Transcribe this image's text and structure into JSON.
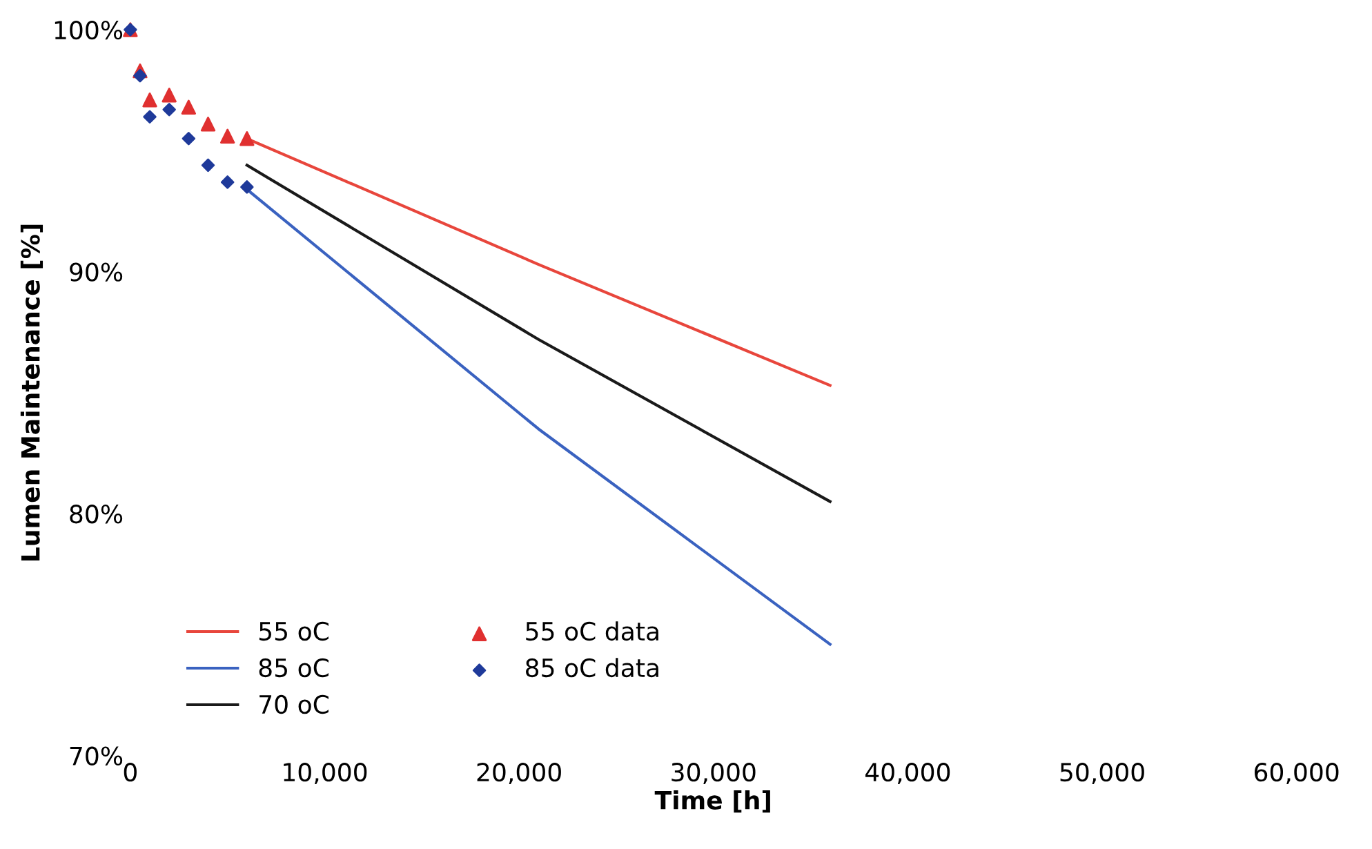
{
  "chart_data": {
    "type": "line",
    "xlabel": "Time [h]",
    "ylabel": "Lumen Maintenance [%]",
    "xlim": [
      0,
      60000
    ],
    "ylim": [
      70,
      100
    ],
    "xticks": [
      {
        "value": 0,
        "label": "0"
      },
      {
        "value": 10000,
        "label": "10,000"
      },
      {
        "value": 20000,
        "label": "20,000"
      },
      {
        "value": 30000,
        "label": "30,000"
      },
      {
        "value": 40000,
        "label": "40,000"
      },
      {
        "value": 50000,
        "label": "50,000"
      },
      {
        "value": 60000,
        "label": "60,000"
      }
    ],
    "yticks": [
      {
        "value": 70,
        "label": "70%"
      },
      {
        "value": 80,
        "label": "80%"
      },
      {
        "value": 90,
        "label": "90%"
      },
      {
        "value": 100,
        "label": "100%"
      }
    ],
    "grid": false,
    "legend": "bottom left",
    "series": [
      {
        "name": "55 oC",
        "color": "#e8463c",
        "marker": "none",
        "x": [
          6000,
          21000,
          36000
        ],
        "values": [
          95.5,
          90.3,
          85.3
        ]
      },
      {
        "name": "85 oC",
        "color": "#3a62c0",
        "marker": "none",
        "x": [
          6000,
          21000,
          36000
        ],
        "values": [
          93.4,
          83.5,
          74.6
        ]
      },
      {
        "name": "70 oC",
        "color": "#1a1a1a",
        "marker": "none",
        "x": [
          6000,
          21000,
          36000
        ],
        "values": [
          94.4,
          87.2,
          80.5
        ]
      },
      {
        "name": "55 oC data",
        "type": "scatter",
        "color": "#e03030",
        "marker": "triangle",
        "x": [
          0,
          500,
          1000,
          2000,
          3000,
          4000,
          5000,
          6000
        ],
        "values": [
          100,
          98.3,
          97.1,
          97.3,
          96.8,
          96.1,
          95.6,
          95.5
        ]
      },
      {
        "name": "85 oC data",
        "type": "scatter",
        "color": "#1f3a9a",
        "marker": "diamond",
        "x": [
          0,
          500,
          1000,
          2000,
          3000,
          4000,
          5000,
          6000
        ],
        "values": [
          100,
          98.1,
          96.4,
          96.7,
          95.5,
          94.4,
          93.7,
          93.5
        ]
      }
    ]
  }
}
